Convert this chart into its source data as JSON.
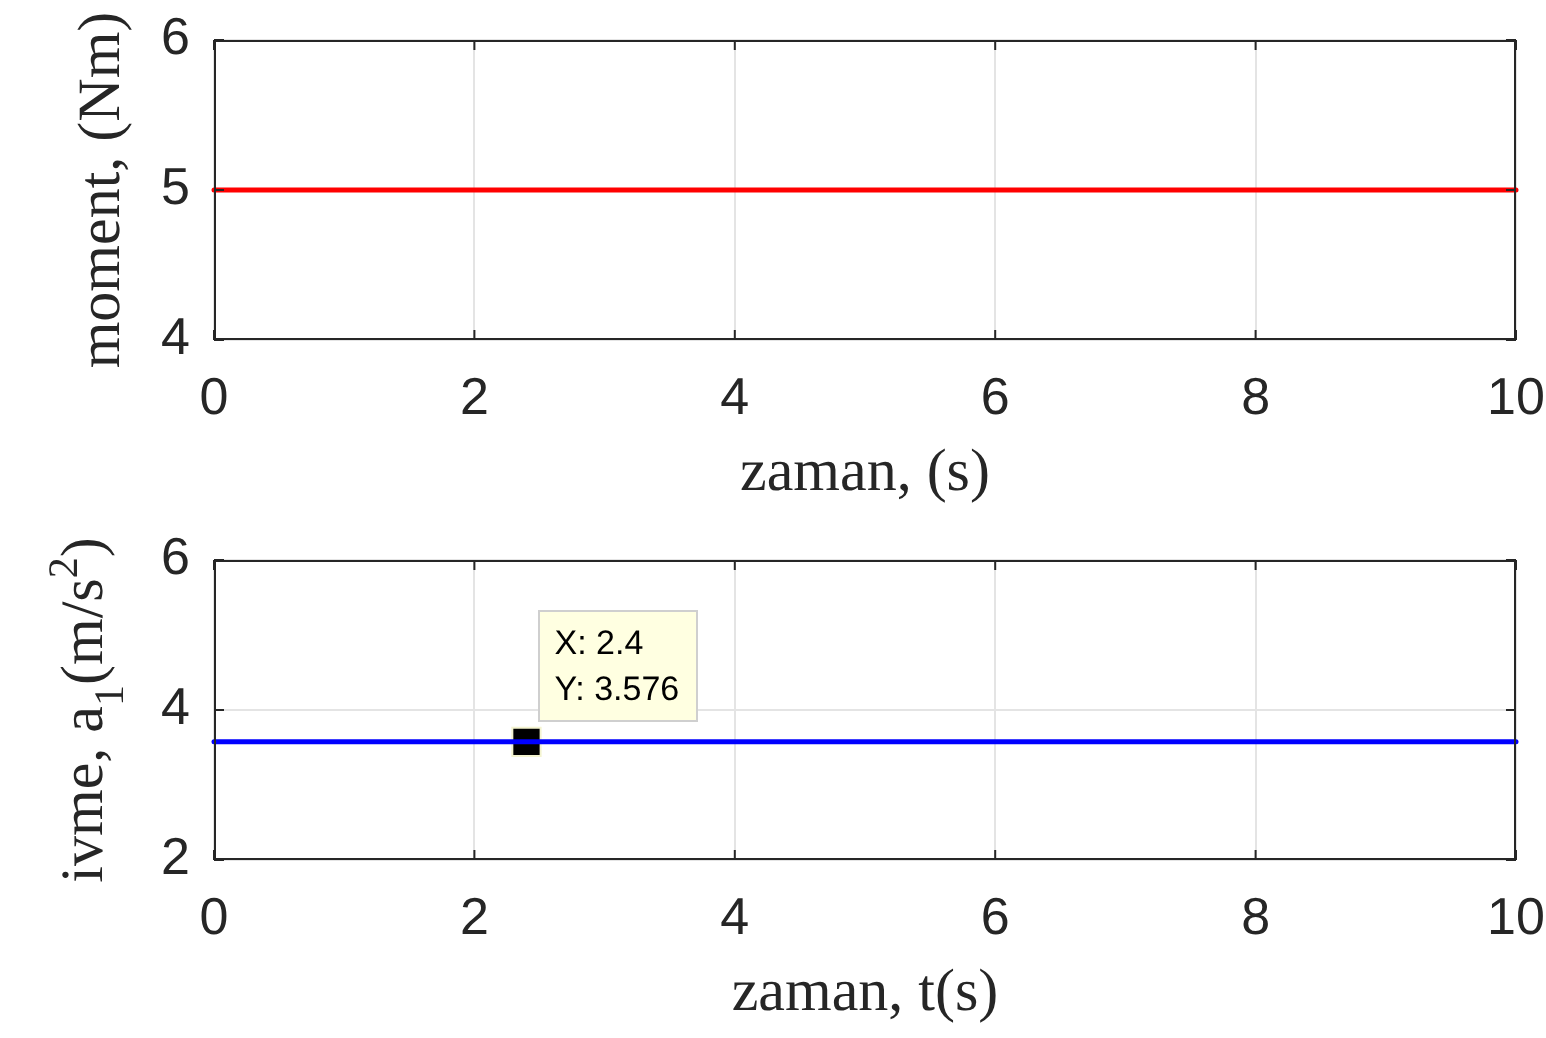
{
  "chart_data": [
    {
      "type": "line",
      "xlabel": "zaman, (s)",
      "ylabel": "moment, (Nm)",
      "xlim": [
        0,
        10
      ],
      "xticks": [
        0,
        2,
        4,
        6,
        8,
        10
      ],
      "ylim": [
        4,
        6
      ],
      "yticks": [
        4,
        5,
        6
      ],
      "grid": true,
      "line_style": "solid",
      "series": [
        {
          "x": [
            0,
            10
          ],
          "values": [
            5,
            5
          ],
          "color": "#ff0000"
        }
      ]
    },
    {
      "type": "line",
      "xlabel": "zaman, t(s)",
      "ylabel": "ivme, a$_{1}$(m/s$^{2}$)",
      "xlim": [
        0,
        10
      ],
      "xticks": [
        0,
        2,
        4,
        6,
        8,
        10
      ],
      "ylim": [
        2,
        6
      ],
      "yticks": [
        2,
        4,
        6
      ],
      "grid": true,
      "line_style": "solid",
      "series": [
        {
          "x": [
            0,
            10
          ],
          "values": [
            3.576,
            3.576
          ],
          "color": "#0000ff"
        },
        {
          "type": "scatter",
          "marker": "square",
          "x": [
            2.4
          ],
          "values": [
            3.576
          ],
          "color": "#000000"
        }
      ],
      "annotations": [
        {
          "text": "X: 2.4\nY: 3.576",
          "x": 2.4,
          "y": 3.576
        }
      ]
    }
  ]
}
